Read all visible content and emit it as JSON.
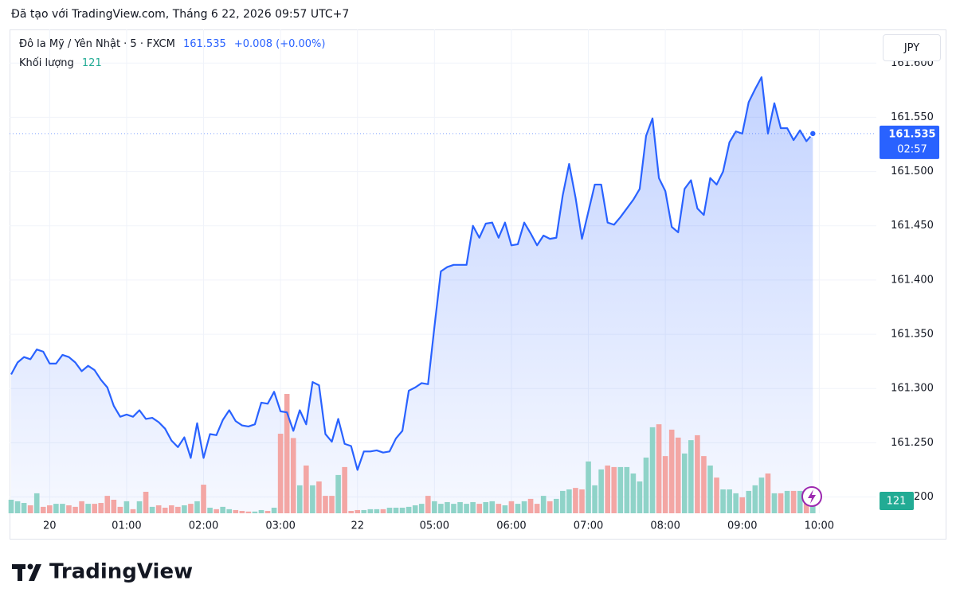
{
  "header": "Đã tạo với TradingView.com, Tháng 6 22, 2026 09:57 UTC+7",
  "logo": "TradingView",
  "chart_data": {
    "type": "line",
    "change": "+0.008 (+0.00%)",
    "countdown": "02:57",
    "currency": "JPY",
    "grid": true,
    "x": [
      0,
      1,
      2,
      3,
      4,
      5,
      6,
      7,
      8,
      9,
      10,
      11,
      12,
      13,
      14,
      15,
      16,
      17,
      18,
      19,
      20,
      21,
      22,
      23,
      24,
      25,
      26,
      27,
      28,
      29,
      30,
      31,
      32,
      33,
      34,
      35,
      36,
      37,
      38,
      39,
      40,
      41,
      42,
      43,
      44,
      45,
      46,
      47,
      48,
      49,
      50,
      51,
      52,
      53,
      54,
      55,
      56,
      57,
      58,
      59,
      60,
      61,
      62,
      63,
      64,
      65,
      66,
      67,
      68,
      69,
      70,
      71,
      72,
      73,
      74,
      75,
      76,
      77,
      78,
      79,
      80,
      81,
      82,
      83,
      84,
      85,
      86,
      87,
      88,
      89,
      90,
      91,
      92,
      93,
      94,
      95,
      96,
      97,
      98,
      99,
      100,
      101,
      102,
      103,
      104,
      105,
      106,
      107,
      108,
      109,
      110,
      111,
      112,
      113,
      114,
      115,
      116,
      117,
      118,
      119,
      120,
      121,
      122,
      123,
      124,
      125
    ],
    "series": [
      {
        "name": "Đô la Mỹ / Yên Nhật · 5 · FXCM",
        "type": "line",
        "color": "#2962ff",
        "values": [
          161.313,
          161.324,
          161.329,
          161.327,
          161.336,
          161.334,
          161.323,
          161.323,
          161.331,
          161.329,
          161.324,
          161.316,
          161.321,
          161.317,
          161.308,
          161.301,
          161.284,
          161.274,
          161.276,
          161.274,
          161.28,
          161.272,
          161.273,
          161.269,
          161.263,
          161.252,
          161.246,
          161.255,
          161.236,
          161.268,
          161.236,
          161.258,
          161.257,
          161.271,
          161.28,
          161.27,
          161.266,
          161.265,
          161.267,
          161.287,
          161.286,
          161.297,
          161.279,
          161.278,
          161.261,
          161.28,
          161.267,
          161.306,
          161.303,
          161.258,
          161.251,
          161.272,
          161.249,
          161.247,
          161.225,
          161.242,
          161.242,
          161.243,
          161.241,
          161.242,
          161.254,
          161.261,
          161.298,
          161.301,
          161.305,
          161.304,
          161.357,
          161.408,
          161.412,
          161.414,
          161.414,
          161.414,
          161.45,
          161.439,
          161.452,
          161.453,
          161.439,
          161.453,
          161.432,
          161.433,
          161.453,
          161.443,
          161.432,
          161.441,
          161.438,
          161.439,
          161.478,
          161.507,
          161.476,
          161.438,
          161.463,
          161.488,
          161.488,
          161.453,
          161.451,
          161.458,
          161.466,
          161.474,
          161.484,
          161.533,
          161.549,
          161.494,
          161.482,
          161.449,
          161.444,
          161.484,
          161.492,
          161.466,
          161.46,
          161.494,
          161.488,
          161.5,
          161.527,
          161.537,
          161.535,
          161.564,
          161.576,
          161.587,
          161.535,
          161.563,
          161.54,
          161.54,
          161.529,
          161.538,
          161.528,
          161.535
        ]
      },
      {
        "name": "Khối lượng",
        "type": "bar",
        "axis": "y2",
        "up_color": "#8fd3c8",
        "down_color": "#f3a6a4",
        "values": [
          63,
          56,
          48,
          37,
          93,
          30,
          37,
          44,
          44,
          37,
          30,
          56,
          44,
          44,
          48,
          81,
          63,
          30,
          56,
          19,
          56,
          100,
          30,
          37,
          26,
          37,
          30,
          37,
          44,
          56,
          133,
          26,
          19,
          30,
          19,
          15,
          11,
          8,
          8,
          15,
          11,
          26,
          370,
          555,
          350,
          130,
          222,
          130,
          148,
          81,
          81,
          178,
          215,
          11,
          15,
          15,
          19,
          19,
          19,
          26,
          26,
          26,
          30,
          37,
          44,
          81,
          56,
          44,
          52,
          44,
          52,
          44,
          52,
          44,
          52,
          56,
          44,
          37,
          56,
          44,
          56,
          67,
          44,
          81,
          56,
          67,
          104,
          111,
          118,
          111,
          241,
          130,
          204,
          222,
          215,
          215,
          215,
          185,
          148,
          259,
          400,
          414,
          266,
          389,
          352,
          278,
          340,
          363,
          266,
          222,
          166,
          111,
          111,
          93,
          74,
          104,
          130,
          166,
          185,
          93,
          93,
          104,
          104,
          104,
          111,
          121
        ]
      }
    ],
    "xlim": [
      -0.25,
      134.9
    ],
    "xticks": [
      {
        "value": 6,
        "label": "20"
      },
      {
        "value": 18,
        "label": "01:00"
      },
      {
        "value": 30,
        "label": "02:00"
      },
      {
        "value": 42,
        "label": "03:00"
      },
      {
        "value": 54,
        "label": "22"
      },
      {
        "value": 66,
        "label": "05:00"
      },
      {
        "value": 78,
        "label": "06:00"
      },
      {
        "value": 90,
        "label": "07:00"
      },
      {
        "value": 102,
        "label": "08:00"
      },
      {
        "value": 114,
        "label": "09:00"
      },
      {
        "value": 126,
        "label": "10:00"
      }
    ],
    "ylim": [
      161.185,
      161.631
    ],
    "yticks": [
      {
        "value": 161.2,
        "label": "161.200"
      },
      {
        "value": 161.25,
        "label": "161.250"
      },
      {
        "value": 161.3,
        "label": "161.300"
      },
      {
        "value": 161.35,
        "label": "161.350"
      },
      {
        "value": 161.4,
        "label": "161.400"
      },
      {
        "value": 161.45,
        "label": "161.450"
      },
      {
        "value": 161.5,
        "label": "161.500"
      },
      {
        "value": 161.55,
        "label": "161.550"
      },
      {
        "value": 161.6,
        "label": "161.600"
      }
    ],
    "y2lim": [
      0,
      2250
    ]
  }
}
